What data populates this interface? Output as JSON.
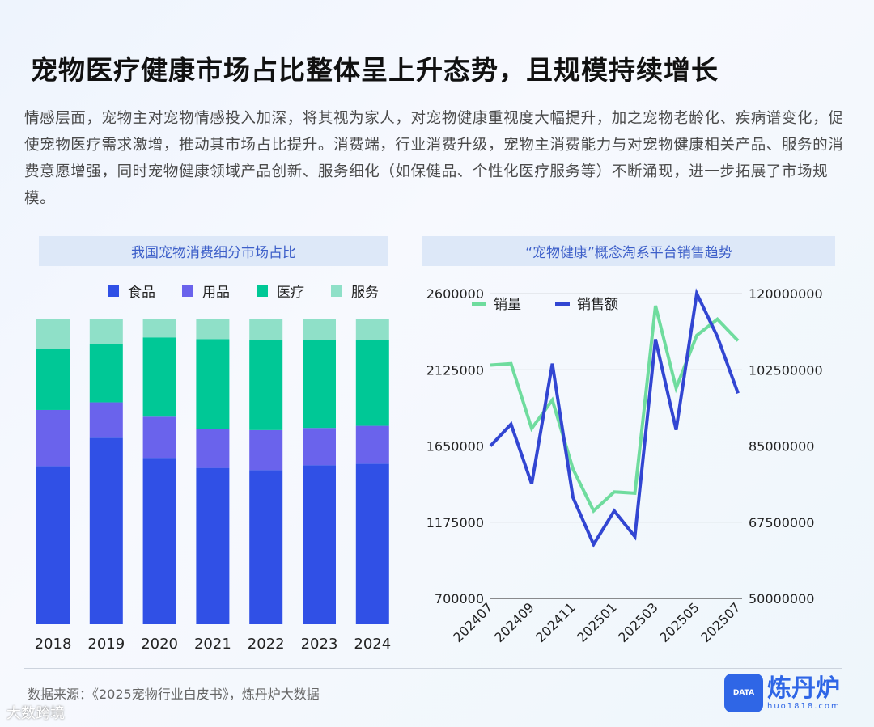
{
  "title": "宠物医疗健康市场占比整体呈上升态势，且规模持续增长",
  "paragraph": "情感层面，宠物主对宠物情感投入加深，将其视为家人，对宠物健康重视度大幅提升，加之宠物老龄化、疾病谱变化，促使宠物医疗需求激增，推动其市场占比提升。消费端，行业消费升级，宠物主消费能力与对宠物健康相关产品、服务的消费意愿增强，同时宠物健康领域产品创新、服务细化（如保健品、个性化医疗服务等）不断涌现，进一步拓展了市场规模。",
  "chart_data": [
    {
      "type": "bar",
      "stacked": true,
      "title": "我国宠物消费细分市场占比",
      "categories": [
        "2018",
        "2019",
        "2020",
        "2021",
        "2022",
        "2023",
        "2024"
      ],
      "legend_position": "top",
      "ylim": [
        0,
        100
      ],
      "series": [
        {
          "name": "食品",
          "color": "#3050e6",
          "values": [
            51.9,
            61.2,
            54.6,
            51.3,
            50.6,
            52.2,
            52.7
          ]
        },
        {
          "name": "用品",
          "color": "#6a63ec",
          "values": [
            18.4,
            11.6,
            13.5,
            12.7,
            13.1,
            12.2,
            12.4
          ]
        },
        {
          "name": "医疗",
          "color": "#00c896",
          "values": [
            20.0,
            19.2,
            26.0,
            29.5,
            29.5,
            28.8,
            28.1
          ]
        },
        {
          "name": "服务",
          "color": "#8fe0c8",
          "values": [
            9.7,
            8.0,
            5.9,
            6.5,
            6.8,
            6.8,
            6.8
          ]
        }
      ]
    },
    {
      "type": "line",
      "title": "“宠物健康”概念淘系平台销售趋势",
      "x": [
        "202407",
        "202408",
        "202409",
        "202410",
        "202411",
        "202412",
        "202501",
        "202502",
        "202503",
        "202504",
        "202505",
        "202506",
        "202507"
      ],
      "x_tick_labels": [
        "202407",
        "202409",
        "202411",
        "202501",
        "202503",
        "202505",
        "202507"
      ],
      "y_left": {
        "range": [
          700000,
          2600000
        ],
        "ticks": [
          "2600000",
          "2125000",
          "1650000",
          "1175000",
          "700000"
        ]
      },
      "y_right": {
        "range": [
          50000000,
          120000000
        ],
        "ticks": [
          "120000000",
          "102500000",
          "85000000",
          "67500000",
          "50000000"
        ]
      },
      "grid": true,
      "legend_position": "top-left",
      "series": [
        {
          "name": "销量",
          "axis": "left",
          "color": "#6fdc9e",
          "values": [
            2154000,
            2163000,
            1759000,
            1936000,
            1507000,
            1246000,
            1364000,
            1356000,
            2524000,
            2011000,
            2339000,
            2440000,
            2306000
          ]
        },
        {
          "name": "销售额",
          "axis": "right",
          "color": "#3246d2",
          "values": [
            85000000,
            90000000,
            76300000,
            103900000,
            73200000,
            62400000,
            70100000,
            64200000,
            109500000,
            88700000,
            120000000,
            110100000,
            97100000
          ]
        }
      ]
    }
  ],
  "footer": {
    "source": "数据来源：《2025宠物行业白皮书》，炼丹炉大数据",
    "watermark": "大数跨境",
    "logo_name": "炼丹炉",
    "logo_url": "huo1818.com",
    "logo_badge": "DATA"
  }
}
